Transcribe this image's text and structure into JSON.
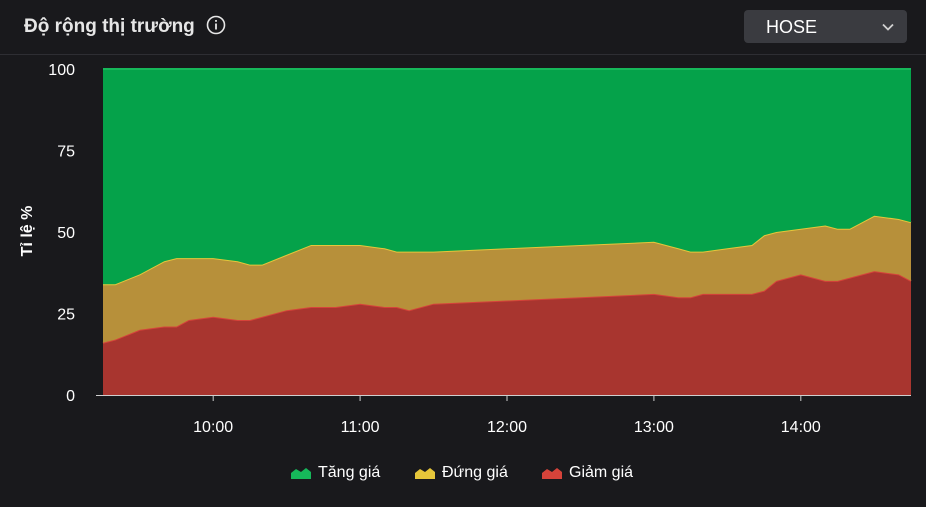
{
  "header": {
    "title": "Độ rộng thị trường",
    "info_icon": "info-circle-icon",
    "exchange_select": {
      "value": "HOSE",
      "icon": "chevron-down-icon"
    }
  },
  "chart_data": {
    "type": "area",
    "stacked": true,
    "ylabel": "Tỉ lệ %",
    "ylim": [
      0,
      100
    ],
    "yticks": [
      "0",
      "25",
      "50",
      "75",
      "100"
    ],
    "xticks": [
      "10:00",
      "11:00",
      "12:00",
      "13:00",
      "14:00"
    ],
    "xlim": [
      "09:15",
      "14:45"
    ],
    "grid": false,
    "legend_position": "bottom",
    "x": [
      "09:15",
      "09:20",
      "09:30",
      "09:40",
      "09:45",
      "09:50",
      "10:00",
      "10:10",
      "10:15",
      "10:20",
      "10:30",
      "10:40",
      "10:45",
      "10:50",
      "11:00",
      "11:10",
      "11:15",
      "11:20",
      "11:30",
      "12:00",
      "12:30",
      "13:00",
      "13:10",
      "13:15",
      "13:20",
      "13:30",
      "13:40",
      "13:45",
      "13:50",
      "14:00",
      "14:10",
      "14:15",
      "14:20",
      "14:30",
      "14:40",
      "14:45"
    ],
    "series": [
      {
        "name": "Giảm giá",
        "color": "#a8352f",
        "stroke": "#d6433a",
        "values": [
          16,
          17,
          20,
          21,
          21,
          23,
          24,
          23,
          23,
          24,
          26,
          27,
          27,
          27,
          28,
          27,
          27,
          26,
          28,
          29,
          30,
          31,
          30,
          30,
          31,
          31,
          31,
          32,
          35,
          37,
          35,
          35,
          36,
          38,
          37,
          35
        ]
      },
      {
        "name": "Đứng giá",
        "color": "#b7903a",
        "stroke": "#e6c63a",
        "values": [
          18,
          17,
          17,
          20,
          21,
          19,
          18,
          18,
          17,
          16,
          17,
          19,
          19,
          19,
          18,
          18,
          17,
          18,
          16,
          16,
          16,
          16,
          15,
          14,
          13,
          14,
          15,
          17,
          15,
          14,
          17,
          16,
          15,
          17,
          17,
          18
        ]
      },
      {
        "name": "Tăng giá",
        "color": "#05a24a",
        "stroke": "#16b85a",
        "values": [
          66,
          66,
          63,
          59,
          58,
          58,
          58,
          59,
          60,
          60,
          57,
          54,
          54,
          54,
          54,
          55,
          56,
          56,
          56,
          55,
          54,
          53,
          55,
          56,
          56,
          55,
          54,
          51,
          50,
          49,
          48,
          49,
          49,
          45,
          46,
          47
        ]
      }
    ]
  }
}
